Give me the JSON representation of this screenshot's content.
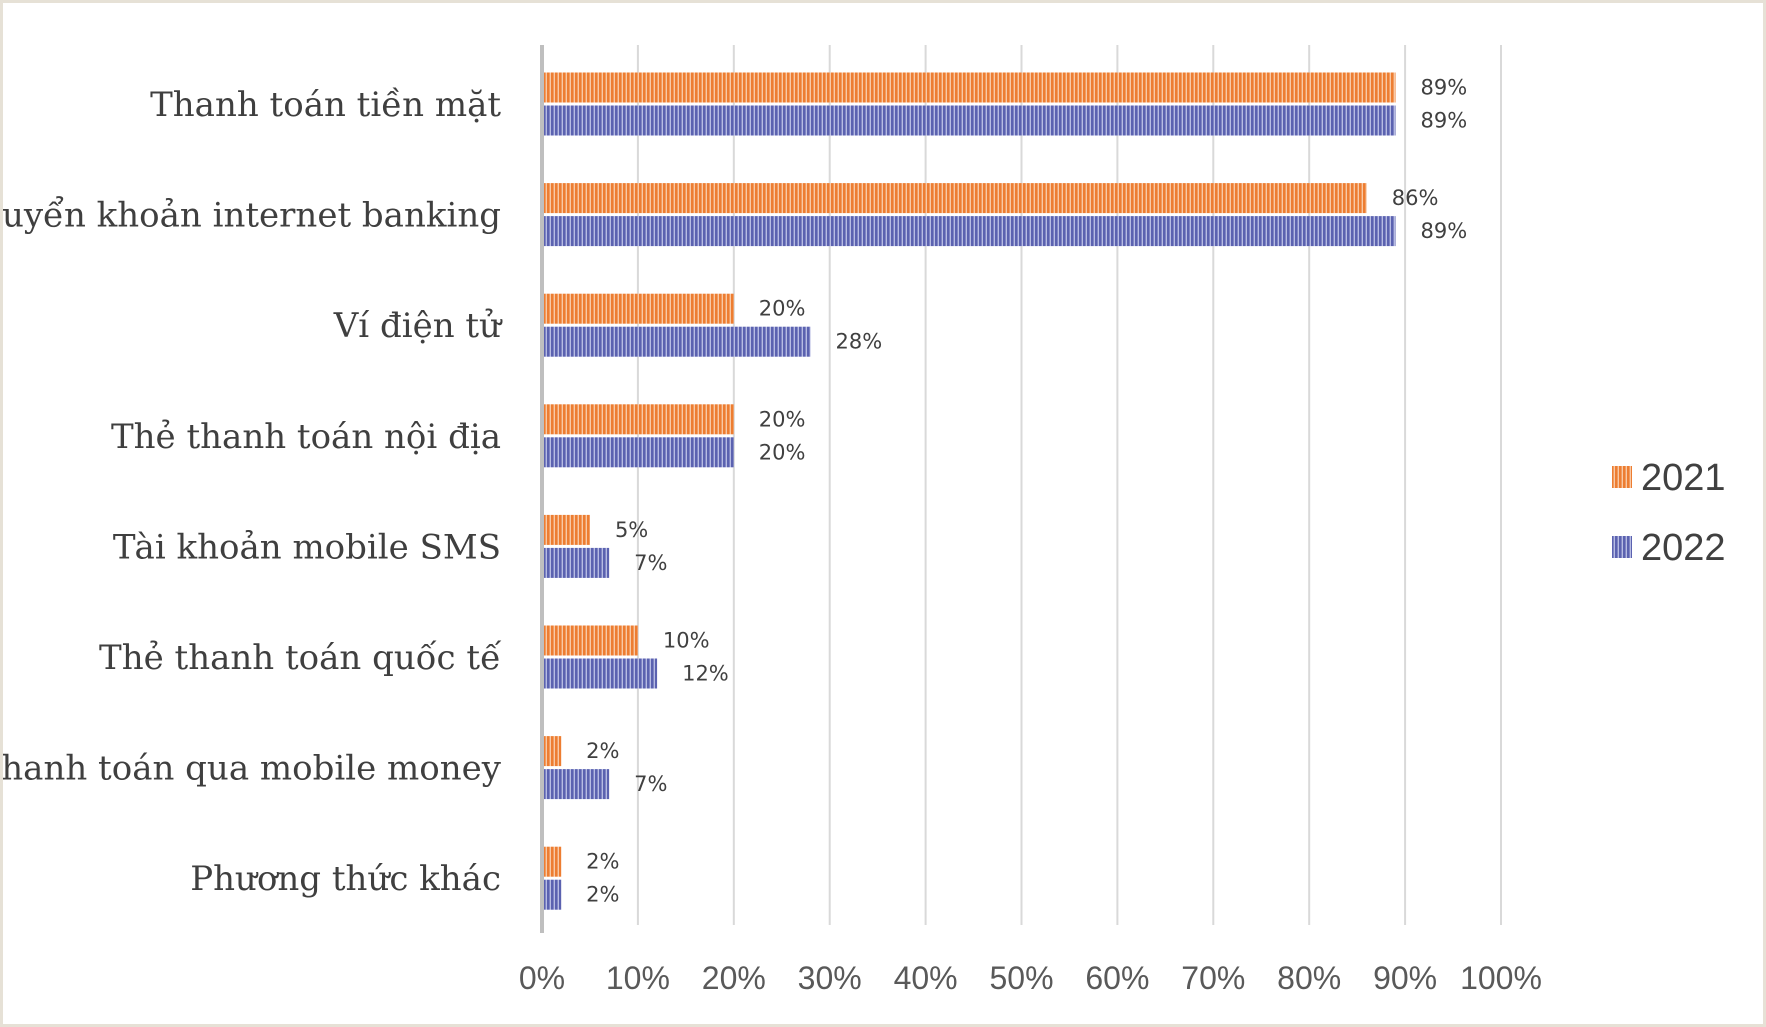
{
  "chart_data": {
    "type": "bar",
    "orientation": "horizontal",
    "title": "",
    "xlabel": "",
    "ylabel": "",
    "xlim": [
      0,
      100
    ],
    "x_ticks": [
      "0%",
      "10%",
      "20%",
      "30%",
      "40%",
      "50%",
      "60%",
      "70%",
      "80%",
      "90%",
      "100%"
    ],
    "grid": true,
    "legend_position": "right",
    "categories": [
      "Thanh toán tiền mặt",
      "Chuyển khoản internet banking",
      "Ví điện tử",
      "Thẻ thanh toán nội địa",
      "Tài khoản mobile SMS",
      "Thẻ thanh toán quốc tế",
      "Thanh toán qua mobile money",
      "Phương thức khác"
    ],
    "series": [
      {
        "name": "2021",
        "color": "#ed7d31",
        "values": [
          89,
          86,
          20,
          20,
          5,
          10,
          2,
          2
        ]
      },
      {
        "name": "2022",
        "color": "#5b62b0",
        "values": [
          89,
          89,
          28,
          20,
          7,
          12,
          7,
          2
        ]
      }
    ],
    "value_suffix": "%"
  }
}
